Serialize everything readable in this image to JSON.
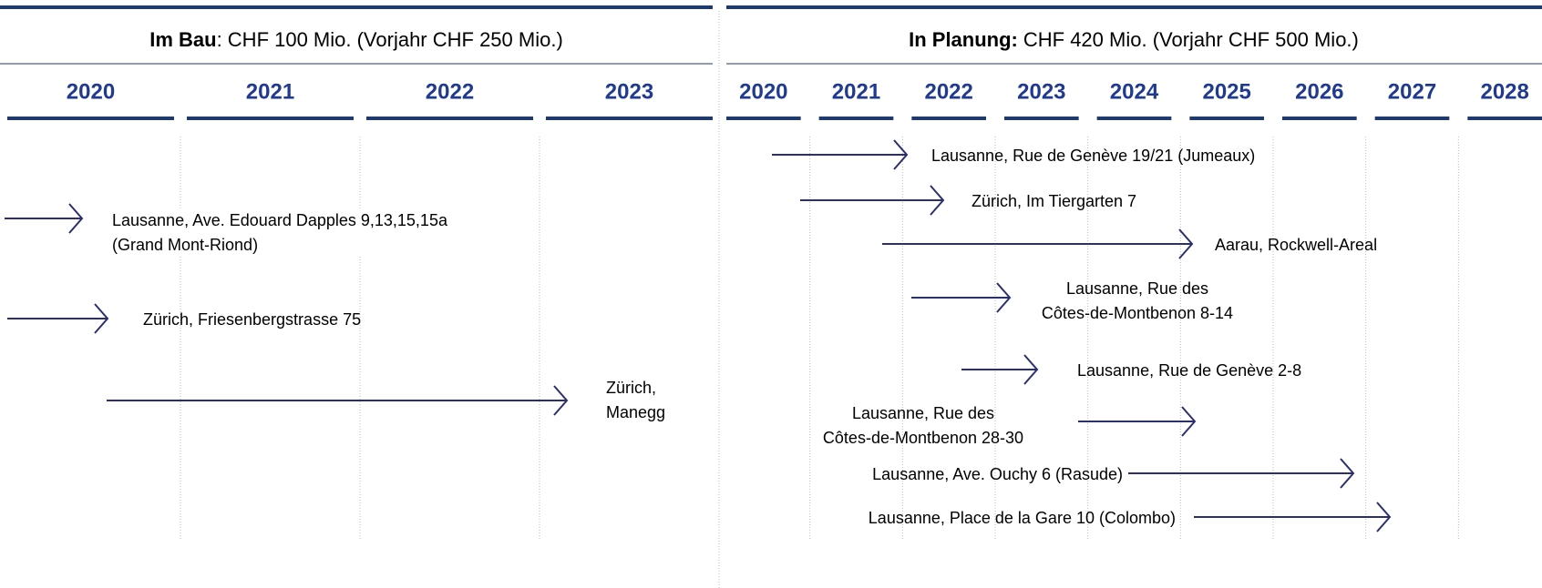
{
  "left_panel": {
    "label": "Im Bau",
    "summary": ": CHF 100 Mio. (Vorjahr CHF 250 Mio.)",
    "years": [
      "2020",
      "2021",
      "2022",
      "2023"
    ],
    "projects": [
      {
        "lines": [
          "Lausanne, Ave. Edouard Dapples 9,13,15,15a",
          "(Grand Mont-Riond)"
        ]
      },
      {
        "lines": [
          "Zürich, Friesenbergstrasse 75"
        ]
      },
      {
        "lines": [
          "Zürich,",
          "Manegg"
        ]
      }
    ]
  },
  "right_panel": {
    "label": "In Planung:",
    "summary": "CHF 420 Mio. (Vorjahr CHF 500 Mio.)",
    "years": [
      "2020",
      "2021",
      "2022",
      "2023",
      "2024",
      "2025",
      "2026",
      "2027",
      "2028"
    ],
    "projects": [
      {
        "lines": [
          "Lausanne, Rue de Genève 19/21 (Jumeaux)"
        ]
      },
      {
        "lines": [
          "Zürich, Im Tiergarten 7"
        ]
      },
      {
        "lines": [
          "Aarau, Rockwell-Areal"
        ]
      },
      {
        "lines": [
          "Lausanne, Rue des",
          "Côtes-de-Montbenon 8-14"
        ]
      },
      {
        "lines": [
          "Lausanne, Rue de Genève 2-8"
        ]
      },
      {
        "lines": [
          "Lausanne, Rue des",
          "Côtes-de-Montbenon 28-30"
        ]
      },
      {
        "lines": [
          "Lausanne, Ave. Ouchy 6 (Rasude)"
        ]
      },
      {
        "lines": [
          "Lausanne, Place de la Gare 10 (Colombo)"
        ]
      }
    ]
  }
}
